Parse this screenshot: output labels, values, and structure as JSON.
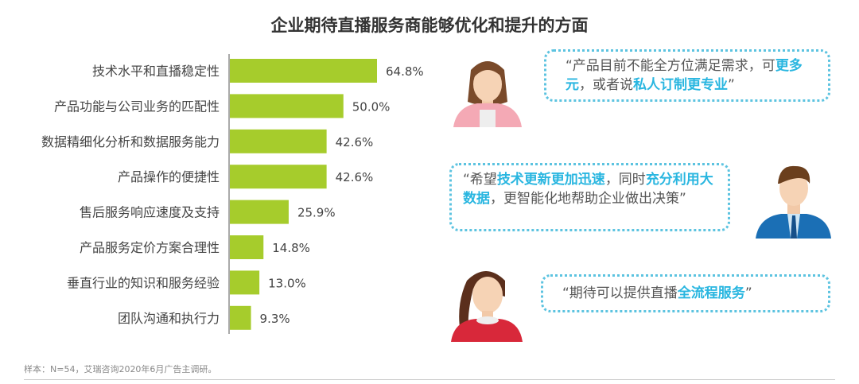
{
  "chart_data": {
    "type": "bar",
    "orientation": "horizontal",
    "title": "企业期待直播服务商能够优化和提升的方面",
    "categories": [
      "技术水平和直播稳定性",
      "产品功能与公司业务的匹配性",
      "数据精细化分析和数据服务能力",
      "产品操作的便捷性",
      "售后服务响应速度及支持",
      "产品服务定价方案合理性",
      "垂直行业的知识和服务经验",
      "团队沟通和执行力"
    ],
    "values": [
      64.8,
      50.0,
      42.6,
      42.6,
      25.9,
      14.8,
      13.0,
      9.3
    ],
    "labels": [
      "64.8%",
      "50.0%",
      "42.6%",
      "42.6%",
      "25.9%",
      "14.8%",
      "13.0%",
      "9.3%"
    ],
    "unit": "%",
    "bar_color": "#a6cc2c",
    "grid": false
  },
  "quotes": [
    {
      "segments": [
        {
          "t": "“产品目前不能全方位满足需求，可",
          "hl": false
        },
        {
          "t": "更多元",
          "hl": true
        },
        {
          "t": "，或者说",
          "hl": false
        },
        {
          "t": "私人订制更专业",
          "hl": true
        },
        {
          "t": "”",
          "hl": false
        }
      ]
    },
    {
      "segments": [
        {
          "t": "“希望",
          "hl": false
        },
        {
          "t": "技术更新更加迅速",
          "hl": true
        },
        {
          "t": "，同时",
          "hl": false
        },
        {
          "t": "充分利用大数据",
          "hl": true
        },
        {
          "t": "，更智能化地帮助企业做出决策”",
          "hl": false
        }
      ]
    },
    {
      "segments": [
        {
          "t": "“期待可以提供直播",
          "hl": false
        },
        {
          "t": "全流程服务",
          "hl": true
        },
        {
          "t": "”",
          "hl": false
        }
      ]
    }
  ],
  "accent_color": "#29b6e0",
  "source": "样本：N=54，艾瑞咨询2020年6月广告主调研。"
}
